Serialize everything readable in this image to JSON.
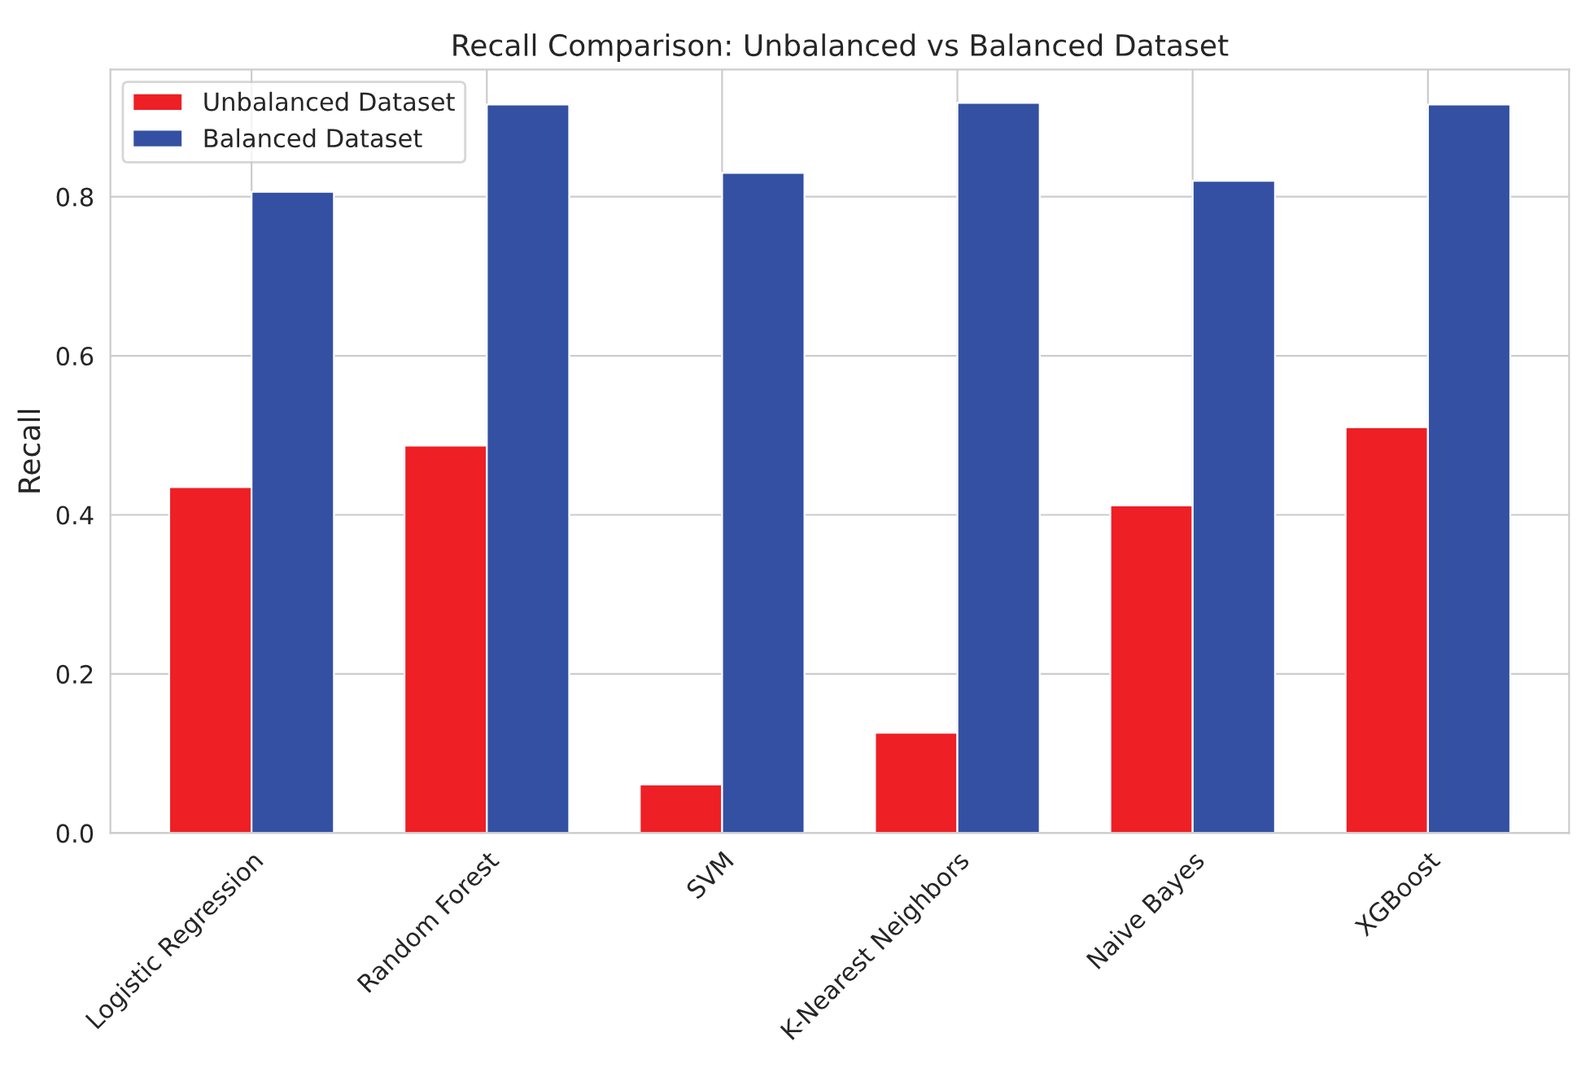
{
  "chart_data": {
    "type": "bar",
    "title": "Recall Comparison: Unbalanced vs Balanced Dataset",
    "ylabel": "Recall",
    "categories": [
      "Logistic Regression",
      "Random Forest",
      "SVM",
      "K-Nearest Neighbors",
      "Naive Bayes",
      "XGBoost"
    ],
    "series": [
      {
        "name": "Unbalanced Dataset",
        "color": "#ee1f25",
        "values": [
          0.435,
          0.487,
          0.061,
          0.126,
          0.412,
          0.51
        ]
      },
      {
        "name": "Balanced Dataset",
        "color": "#3350a2",
        "values": [
          0.806,
          0.916,
          0.83,
          0.918,
          0.82,
          0.916
        ]
      }
    ],
    "ylim": [
      0,
      0.96
    ],
    "yticks": [
      {
        "value": 0,
        "label": "0.0"
      },
      0.2,
      0.4,
      0.6,
      0.8
    ],
    "grid": true,
    "legend": "top left"
  }
}
